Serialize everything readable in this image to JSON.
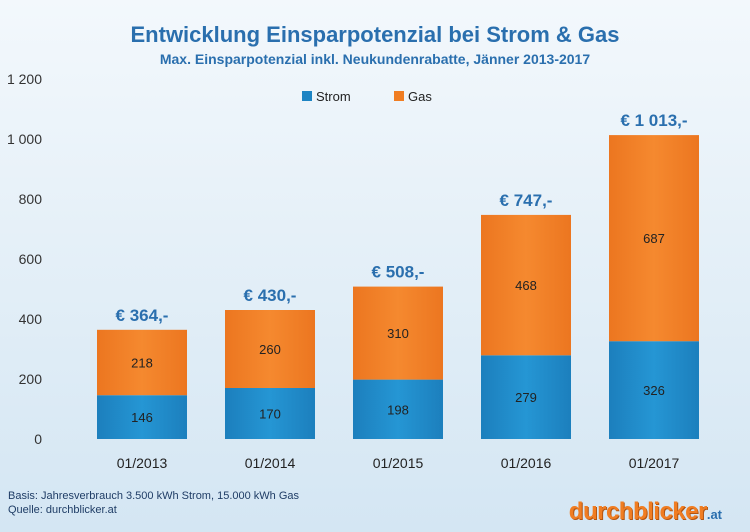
{
  "chart_data": {
    "type": "bar",
    "stacked": true,
    "title": "Entwicklung Einsparpotenzial bei Strom & Gas",
    "subtitle": "Max. Einsparpotenzial inkl. Neukundenrabatte, Jänner 2013-2017",
    "categories": [
      "01/2013",
      "01/2014",
      "01/2015",
      "01/2016",
      "01/2017"
    ],
    "series": [
      {
        "name": "Strom",
        "values": [
          146,
          170,
          198,
          279,
          326
        ],
        "color": "#1d84c3"
      },
      {
        "name": "Gas",
        "values": [
          218,
          260,
          310,
          468,
          687
        ],
        "color": "#f07d22"
      }
    ],
    "totals_labels": [
      "€ 364,-",
      "€ 430,-",
      "€ 508,-",
      "€ 747,-",
      "€ 1 013,-"
    ],
    "y_ticks": [
      "0",
      "200",
      "400",
      "600",
      "800",
      "1 000",
      "1 200"
    ],
    "ylim": [
      0,
      1200
    ],
    "legend_position": "top-center",
    "grid": false
  },
  "footer": {
    "basis": "Basis: Jahresverbrauch 3.500 kWh Strom, 15.000 kWh Gas",
    "source": "Quelle: durchblicker.at"
  },
  "logo": {
    "main": "durchblicker",
    "tld": ".at"
  }
}
